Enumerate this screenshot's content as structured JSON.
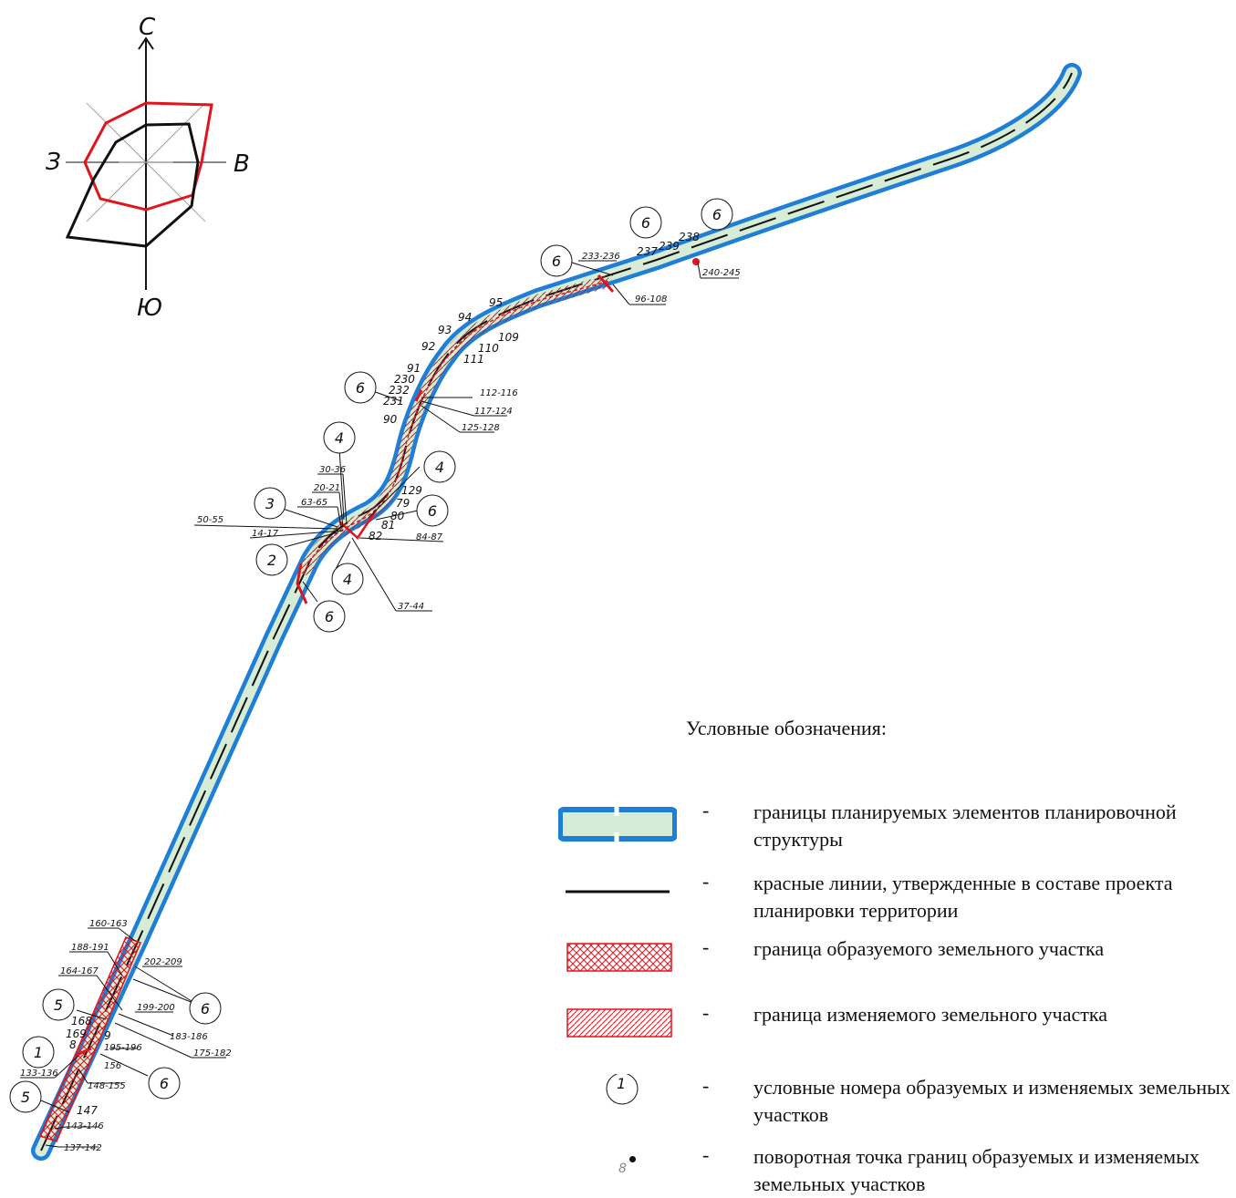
{
  "compass": {
    "north": "С",
    "south": "Ю",
    "west": "З",
    "east": "В"
  },
  "map_labels": {
    "plot_numbers": [
      "1",
      "2",
      "3",
      "4",
      "4",
      "4",
      "4",
      "5",
      "5",
      "6",
      "6",
      "6",
      "6",
      "6",
      "6",
      "6",
      "6",
      "6"
    ],
    "point_labels": [
      "233-236",
      "96-108",
      "237",
      "239",
      "238",
      "240-245",
      "95",
      "94",
      "93",
      "92",
      "109",
      "110",
      "111",
      "91",
      "230",
      "232",
      "231",
      "90",
      "112-116",
      "117-124",
      "125-128",
      "30-36",
      "20-21",
      "63-65",
      "50-55",
      "14-17",
      "129",
      "79",
      "80",
      "81",
      "82",
      "84-87",
      "37-44",
      "160-163",
      "188-191",
      "202-209",
      "164-167",
      "199-200",
      "183-186",
      "168",
      "169",
      "8",
      "9",
      "195-196",
      "175-182",
      "133-136",
      "156",
      "148-155",
      "147",
      "143-146",
      "137-142"
    ]
  },
  "legend": {
    "title": "Условные обозначения:",
    "dash": "-",
    "items": [
      {
        "text": "границы планируемых элементов планировочной структуры"
      },
      {
        "text": "красные линии, утвержденные в составе проекта планировки территории"
      },
      {
        "text": "граница образуемого земельного участка"
      },
      {
        "text": "граница изменяемого земельного участка"
      },
      {
        "symbol_label": "1",
        "text": "условные номера образуемых и изменяемых земельных участков"
      },
      {
        "symbol_label": "8",
        "text": "поворотная точка границ образуемых и изменяемых земельных участков"
      }
    ]
  },
  "colors": {
    "boundary_blue": "#1f7fd6",
    "fill_green": "#d6ecd6",
    "red": "#e0141a",
    "black": "#111111"
  }
}
